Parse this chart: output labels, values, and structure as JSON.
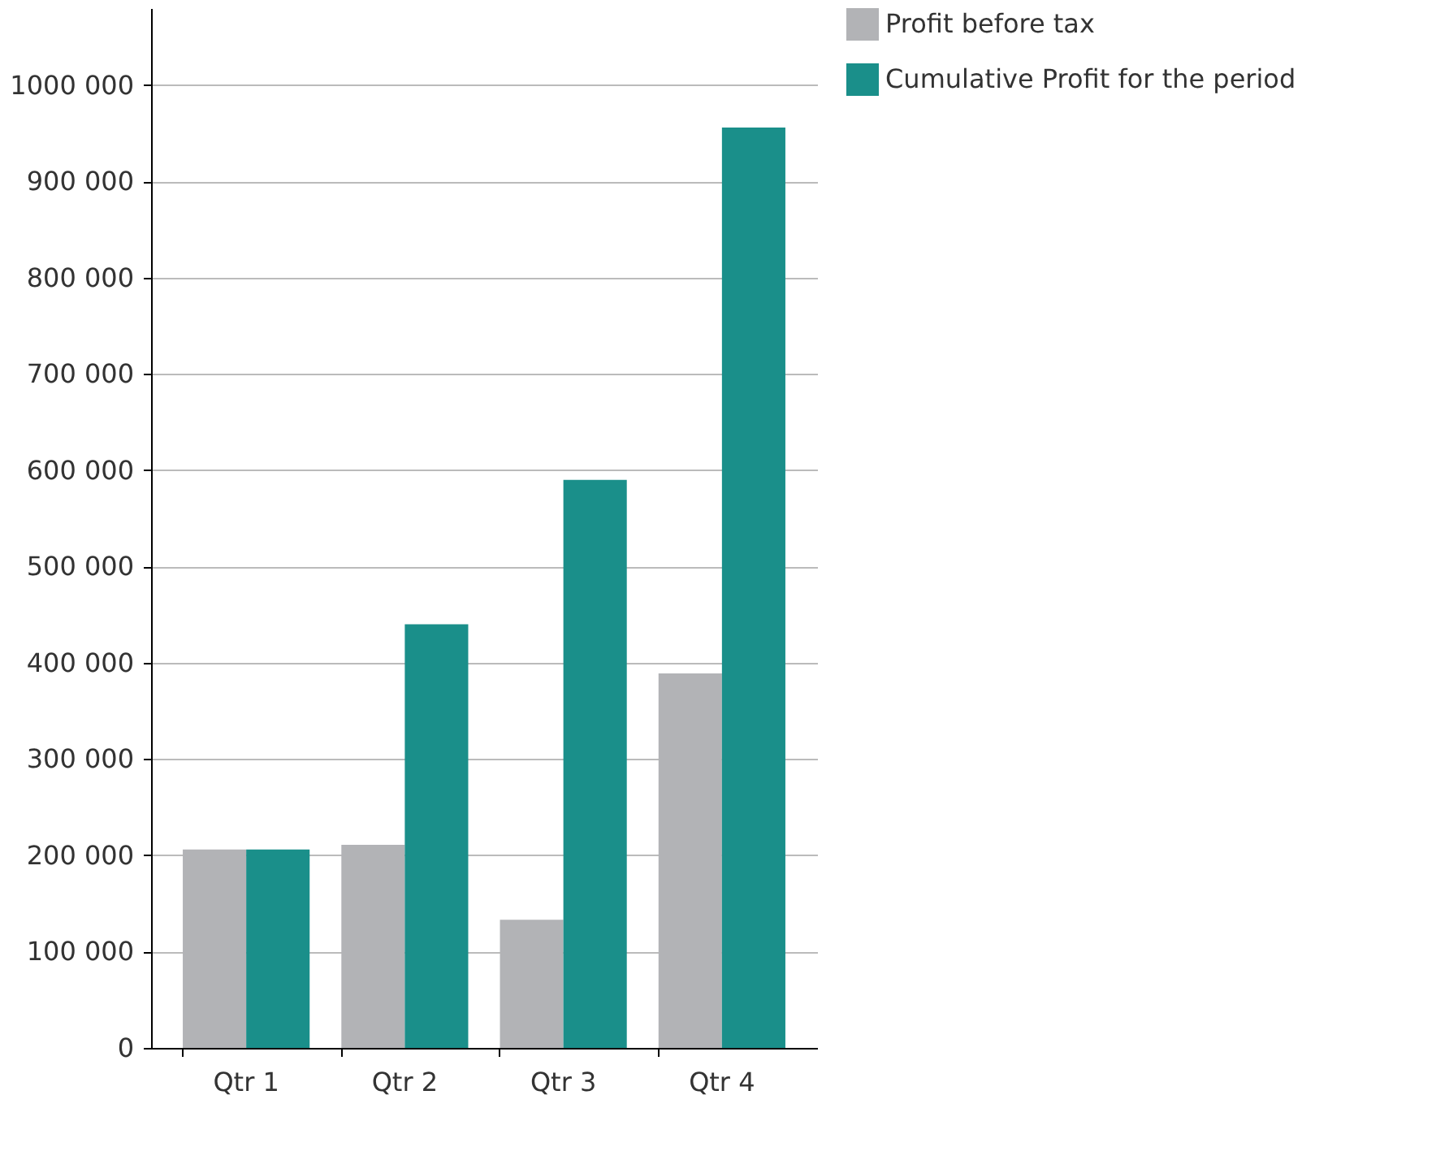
{
  "chart_data": {
    "type": "bar",
    "categories": [
      "Qtr 1",
      "Qtr 2",
      "Qtr 3",
      "Qtr 4"
    ],
    "series": [
      {
        "name": "Profit before tax",
        "color": "#b2b3b6",
        "values": [
          206000,
          211000,
          133000,
          389000
        ]
      },
      {
        "name": "Cumulative Profit for the period",
        "color": "#1a8f8a",
        "values": [
          206000,
          440000,
          590000,
          956000
        ]
      }
    ],
    "ylim": [
      0,
      1080000
    ],
    "yticks": [
      0,
      {
        "value": 100000,
        "label": "100 000"
      },
      {
        "value": 200000,
        "label": "200 000"
      },
      {
        "value": 300000,
        "label": "300 000"
      },
      {
        "value": 400000,
        "label": "400 000"
      },
      {
        "value": 500000,
        "label": "500 000"
      },
      {
        "value": 600000,
        "label": "600 000"
      },
      {
        "value": 700000,
        "label": "700 000"
      },
      {
        "value": 800000,
        "label": "800 000"
      },
      {
        "value": 900000,
        "label": "900 000"
      },
      {
        "value": 1000000,
        "label": "1000 000"
      }
    ],
    "grid": "y",
    "legend": "right"
  }
}
